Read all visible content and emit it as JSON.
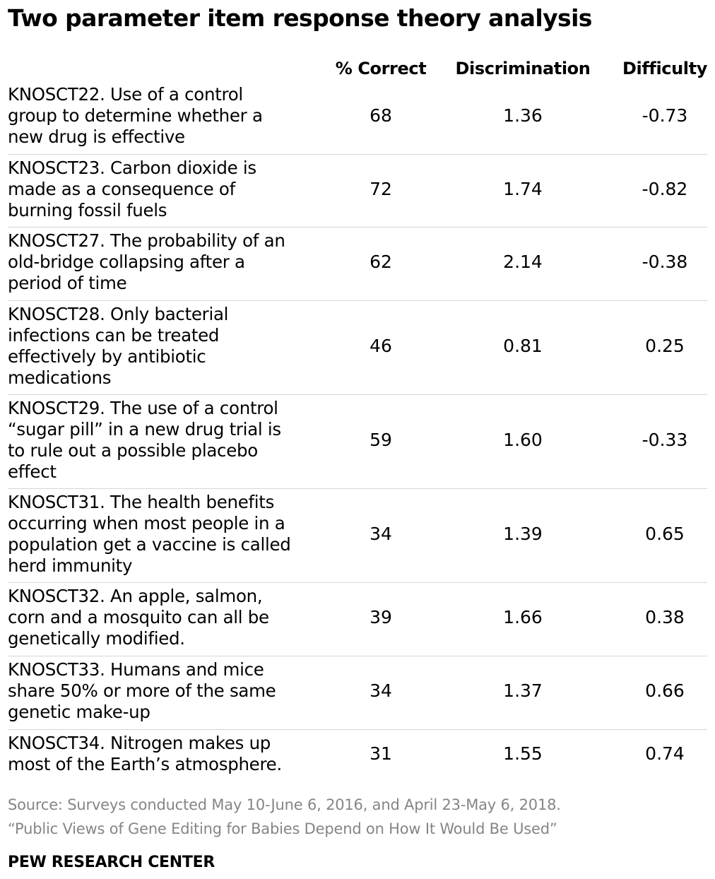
{
  "chart_data": {
    "type": "table",
    "title": "Two parameter item response theory analysis",
    "columns": [
      "% Correct",
      "Discrimination",
      "Difficulty"
    ],
    "rows": [
      {
        "item": "KNOSCT22. Use of a control group to determine whether a new drug is effective",
        "lines": [
          "KNOSCT22. Use of a control",
          "group to determine whether a",
          "new drug is effective"
        ],
        "pct_correct": "68",
        "discrimination": "1.36",
        "difficulty": "-0.73"
      },
      {
        "item": "KNOSCT23. Carbon dioxide is made as a consequence of burning fossil fuels",
        "lines": [
          "KNOSCT23. Carbon dioxide is",
          "made as a consequence of",
          "burning fossil fuels"
        ],
        "pct_correct": "72",
        "discrimination": "1.74",
        "difficulty": "-0.82"
      },
      {
        "item": "KNOSCT27. The probability of an old-bridge collapsing after a period of time",
        "lines": [
          "KNOSCT27. The probability of an",
          "old-bridge collapsing after a",
          "period of time"
        ],
        "pct_correct": "62",
        "discrimination": "2.14",
        "difficulty": "-0.38"
      },
      {
        "item": "KNOSCT28. Only bacterial infections can be treated effectively by antibiotic medications",
        "lines": [
          "KNOSCT28. Only bacterial",
          "infections can be treated",
          "effectively by antibiotic",
          "medications"
        ],
        "pct_correct": "46",
        "discrimination": "0.81",
        "difficulty": "0.25"
      },
      {
        "item": "KNOSCT29. The use of a control “sugar pill” in a new drug trial is to rule out a possible placebo effect",
        "lines": [
          "KNOSCT29. The use of a control",
          "“sugar pill” in a new drug trial is",
          "to rule out a possible placebo",
          "effect"
        ],
        "pct_correct": "59",
        "discrimination": "1.60",
        "difficulty": "-0.33"
      },
      {
        "item": "KNOSCT31. The health benefits occurring when most people in a population get a vaccine is called herd immunity",
        "lines": [
          "KNOSCT31. The health benefits",
          "occurring when most people in a",
          "population get a vaccine is called",
          "herd immunity"
        ],
        "pct_correct": "34",
        "discrimination": "1.39",
        "difficulty": "0.65"
      },
      {
        "item": "KNOSCT32. An apple, salmon, corn and a mosquito can all be genetically modified.",
        "lines": [
          "KNOSCT32. An apple, salmon,",
          "corn and a mosquito can all be",
          "genetically modified."
        ],
        "pct_correct": "39",
        "discrimination": "1.66",
        "difficulty": "0.38"
      },
      {
        "item": "KNOSCT33. Humans and mice share 50% or more of the same genetic make-up",
        "lines": [
          "KNOSCT33. Humans and mice",
          "share 50% or more of the same",
          "genetic make-up"
        ],
        "pct_correct": "34",
        "discrimination": "1.37",
        "difficulty": "0.66"
      },
      {
        "item": "KNOSCT34. Nitrogen makes up most of the Earth’s atmosphere.",
        "lines": [
          "KNOSCT34. Nitrogen makes up",
          "most of the Earth’s atmosphere."
        ],
        "pct_correct": "31",
        "discrimination": "1.55",
        "difficulty": "0.74"
      }
    ],
    "grid": true
  },
  "footer": {
    "source": "Source: Surveys conducted May 10-June 6, 2016, and April 23-May 6, 2018.",
    "report": "“Public Views of Gene Editing for Babies Depend on How It Would Be Used”",
    "org": "PEW RESEARCH CENTER"
  },
  "colors": {
    "text": "#000000",
    "muted": "#858585",
    "rule": "#d6d6d6"
  }
}
